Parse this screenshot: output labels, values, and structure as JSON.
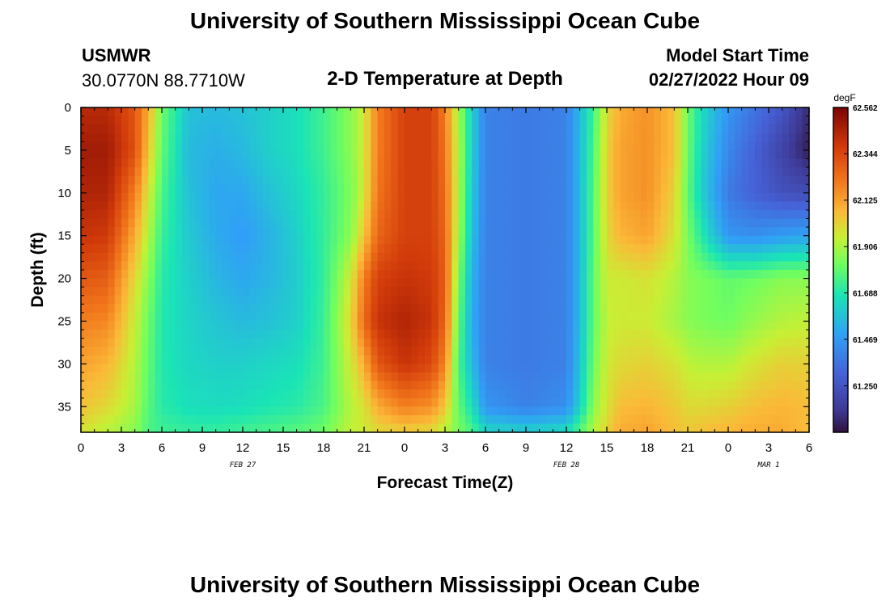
{
  "header": {
    "title": "University of Southern Mississippi Ocean Cube",
    "station": "USMWR",
    "coordinates": "30.0770N  88.7710W",
    "plot_title": "2-D Temperature at Depth",
    "model_start_label": "Model Start Time",
    "model_start_value": "02/27/2022 Hour 09"
  },
  "footer": {
    "title": "University of Southern Mississippi Ocean Cube"
  },
  "chart_data": {
    "type": "heatmap",
    "title": "2-D Temperature at Depth",
    "xlabel": "Forecast Time(Z)",
    "ylabel": "Depth (ft)",
    "x_hours_from_start": [
      0,
      54
    ],
    "ylim": [
      0,
      38
    ],
    "x_tick_labels": [
      "0",
      "3",
      "6",
      "9",
      "12",
      "15",
      "18",
      "21",
      "0",
      "3",
      "6",
      "9",
      "12",
      "15",
      "18",
      "21",
      "0",
      "3",
      "6"
    ],
    "y_tick_labels": [
      "0",
      "5",
      "10",
      "15",
      "20",
      "25",
      "30",
      "35"
    ],
    "y_tick_values": [
      0,
      5,
      10,
      15,
      20,
      25,
      30,
      35
    ],
    "date_labels": [
      {
        "text": "FEB 27",
        "hour": 12
      },
      {
        "text": "FEB 28",
        "hour": 36
      },
      {
        "text": "MAR 1",
        "hour": 51
      }
    ],
    "colorbar": {
      "unit": "degF",
      "range": [
        61.031,
        62.562
      ],
      "tick_labels": [
        "62.562",
        "62.344",
        "62.125",
        "61.906",
        "61.688",
        "61.469",
        "61.250"
      ],
      "tick_values": [
        62.562,
        62.344,
        62.125,
        61.906,
        61.688,
        61.469,
        61.25
      ]
    },
    "temperature_profiles_degF": {
      "depths_ft": [
        0,
        5,
        10,
        15,
        20,
        25,
        30,
        35,
        38
      ],
      "profiles": [
        {
          "hour": 0,
          "values": [
            62.43,
            62.48,
            62.45,
            62.4,
            62.3,
            62.2,
            62.12,
            62.05,
            61.98
          ]
        },
        {
          "hour": 2,
          "values": [
            62.43,
            62.48,
            62.45,
            62.38,
            62.28,
            62.18,
            62.08,
            62.0,
            61.92
          ]
        },
        {
          "hour": 4,
          "values": [
            62.3,
            62.32,
            62.2,
            62.1,
            62.0,
            61.95,
            61.92,
            61.9,
            61.86
          ]
        },
        {
          "hour": 5,
          "values": [
            62.1,
            62.05,
            61.98,
            61.92,
            61.86,
            61.82,
            61.8,
            61.78,
            61.76
          ]
        },
        {
          "hour": 6,
          "values": [
            61.82,
            61.8,
            61.76,
            61.73,
            61.7,
            61.69,
            61.69,
            61.7,
            61.74
          ]
        },
        {
          "hour": 8,
          "values": [
            61.58,
            61.56,
            61.58,
            61.6,
            61.62,
            61.63,
            61.64,
            61.66,
            61.72
          ]
        },
        {
          "hour": 10,
          "values": [
            61.56,
            61.53,
            61.51,
            61.52,
            61.55,
            61.59,
            61.62,
            61.65,
            61.72
          ]
        },
        {
          "hour": 12,
          "values": [
            61.58,
            61.56,
            61.51,
            61.48,
            61.51,
            61.56,
            61.62,
            61.66,
            61.74
          ]
        },
        {
          "hour": 14,
          "values": [
            61.62,
            61.62,
            61.58,
            61.54,
            61.55,
            61.58,
            61.64,
            61.68,
            61.76
          ]
        },
        {
          "hour": 16,
          "values": [
            61.66,
            61.66,
            61.64,
            61.62,
            61.61,
            61.62,
            61.66,
            61.7,
            61.78
          ]
        },
        {
          "hour": 18,
          "values": [
            61.74,
            61.74,
            61.72,
            61.72,
            61.72,
            61.73,
            61.74,
            61.76,
            61.82
          ]
        },
        {
          "hour": 20,
          "values": [
            61.86,
            61.86,
            61.84,
            61.86,
            61.96,
            62.0,
            61.96,
            61.92,
            61.94
          ]
        },
        {
          "hour": 21,
          "values": [
            61.96,
            61.96,
            61.96,
            62.04,
            62.2,
            62.25,
            62.1,
            61.98,
            61.96
          ]
        },
        {
          "hour": 22,
          "values": [
            62.2,
            62.2,
            62.22,
            62.26,
            62.36,
            62.4,
            62.3,
            62.1,
            62.0
          ]
        },
        {
          "hour": 24,
          "values": [
            62.36,
            62.36,
            62.36,
            62.36,
            62.4,
            62.45,
            62.4,
            62.2,
            62.02
          ]
        },
        {
          "hour": 26,
          "values": [
            62.36,
            62.36,
            62.36,
            62.36,
            62.38,
            62.4,
            62.34,
            62.16,
            62.0
          ]
        },
        {
          "hour": 27,
          "values": [
            62.2,
            62.22,
            62.24,
            62.26,
            62.28,
            62.26,
            62.18,
            62.04,
            61.92
          ]
        },
        {
          "hour": 28,
          "values": [
            61.9,
            61.92,
            61.92,
            61.9,
            61.84,
            61.8,
            61.76,
            61.8,
            61.84
          ]
        },
        {
          "hour": 29,
          "values": [
            61.62,
            61.62,
            61.6,
            61.58,
            61.54,
            61.52,
            61.56,
            61.66,
            61.76
          ]
        },
        {
          "hour": 30,
          "values": [
            61.4,
            61.4,
            61.4,
            61.4,
            61.4,
            61.4,
            61.4,
            61.46,
            61.64
          ]
        },
        {
          "hour": 33,
          "values": [
            61.38,
            61.38,
            61.38,
            61.38,
            61.38,
            61.38,
            61.38,
            61.4,
            61.62
          ]
        },
        {
          "hour": 36,
          "values": [
            61.4,
            61.4,
            61.4,
            61.4,
            61.4,
            61.4,
            61.4,
            61.44,
            61.66
          ]
        },
        {
          "hour": 37,
          "values": [
            61.56,
            61.56,
            61.56,
            61.56,
            61.56,
            61.56,
            61.58,
            61.62,
            61.78
          ]
        },
        {
          "hour": 38,
          "values": [
            61.74,
            61.76,
            61.78,
            61.78,
            61.8,
            61.8,
            61.82,
            61.86,
            61.92
          ]
        },
        {
          "hour": 39,
          "values": [
            62.0,
            62.02,
            62.02,
            62.0,
            61.96,
            61.94,
            61.96,
            61.98,
            62.02
          ]
        },
        {
          "hour": 40,
          "values": [
            62.1,
            62.12,
            62.12,
            62.08,
            61.96,
            61.96,
            62.0,
            62.06,
            62.1
          ]
        },
        {
          "hour": 42,
          "values": [
            62.16,
            62.16,
            62.16,
            62.12,
            61.98,
            61.96,
            62.02,
            62.08,
            62.12
          ]
        },
        {
          "hour": 44,
          "values": [
            62.06,
            62.06,
            62.02,
            61.98,
            61.92,
            61.9,
            61.98,
            62.04,
            62.06
          ]
        },
        {
          "hour": 45,
          "values": [
            61.82,
            61.82,
            61.8,
            61.84,
            61.86,
            61.86,
            61.94,
            62.0,
            62.04
          ]
        },
        {
          "hour": 46,
          "values": [
            61.66,
            61.64,
            61.62,
            61.7,
            61.84,
            61.84,
            61.92,
            62.0,
            62.06
          ]
        },
        {
          "hour": 48,
          "values": [
            61.46,
            61.42,
            61.38,
            61.46,
            61.8,
            61.82,
            61.92,
            62.02,
            62.08
          ]
        },
        {
          "hour": 50,
          "values": [
            61.36,
            61.3,
            61.3,
            61.44,
            61.82,
            61.88,
            61.98,
            62.06,
            62.1
          ]
        },
        {
          "hour": 52,
          "values": [
            61.26,
            61.18,
            61.24,
            61.48,
            61.86,
            61.92,
            62.02,
            62.08,
            62.1
          ]
        },
        {
          "hour": 54,
          "values": [
            61.1,
            61.06,
            61.22,
            61.5,
            61.86,
            61.94,
            62.02,
            62.06,
            62.06
          ]
        }
      ]
    }
  }
}
